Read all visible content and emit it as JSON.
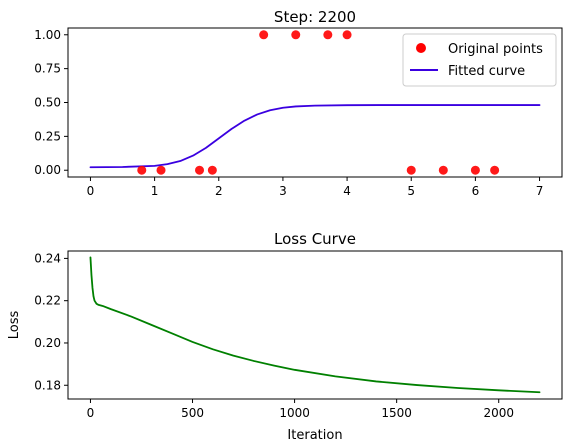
{
  "chart_data": [
    {
      "type": "scatter",
      "title": "Step: 2200",
      "xlabel": "",
      "ylabel": "",
      "xlim": [
        -0.35,
        7.35
      ],
      "ylim": [
        -0.05,
        1.05
      ],
      "xticks": [
        0,
        1,
        2,
        3,
        4,
        5,
        6,
        7
      ],
      "xtick_labels": [
        "0",
        "1",
        "2",
        "3",
        "4",
        "5",
        "6",
        "7"
      ],
      "yticks": [
        0.0,
        0.25,
        0.5,
        0.75,
        1.0
      ],
      "ytick_labels": [
        "0.00",
        "0.25",
        "0.50",
        "0.75",
        "1.00"
      ],
      "legend_position": "top-right",
      "series": [
        {
          "name": "Original points",
          "kind": "scatter",
          "color": "#ff0000",
          "x": [
            0.8,
            1.1,
            1.7,
            1.9,
            2.7,
            3.2,
            3.7,
            4.0,
            5.0,
            5.5,
            6.0,
            6.3
          ],
          "y": [
            0,
            0,
            0,
            0,
            1,
            1,
            1,
            1,
            0,
            0,
            0,
            0
          ]
        },
        {
          "name": "Fitted curve",
          "kind": "line",
          "color": "#3a00e0",
          "x": [
            0,
            0.5,
            1.0,
            1.2,
            1.4,
            1.6,
            1.8,
            2.0,
            2.2,
            2.4,
            2.6,
            2.8,
            3.0,
            3.2,
            3.5,
            4.0,
            4.5,
            5.0,
            6.0,
            7.0
          ],
          "y": [
            0.022,
            0.024,
            0.032,
            0.045,
            0.068,
            0.108,
            0.165,
            0.235,
            0.305,
            0.366,
            0.412,
            0.443,
            0.461,
            0.471,
            0.477,
            0.48,
            0.481,
            0.481,
            0.481,
            0.481
          ]
        }
      ]
    },
    {
      "type": "line",
      "title": "Loss Curve",
      "xlabel": "Iteration",
      "ylabel": "Loss",
      "xlim": [
        -110,
        2310
      ],
      "ylim": [
        0.1735,
        0.2435
      ],
      "xticks": [
        0,
        500,
        1000,
        1500,
        2000
      ],
      "xtick_labels": [
        "0",
        "500",
        "1000",
        "1500",
        "2000"
      ],
      "yticks": [
        0.18,
        0.2,
        0.22,
        0.24
      ],
      "ytick_labels": [
        "0.18",
        "0.20",
        "0.22",
        "0.24"
      ],
      "series": [
        {
          "name": "",
          "color": "#008000",
          "x": [
            0,
            5,
            10,
            15,
            20,
            30,
            40,
            60,
            100,
            200,
            300,
            400,
            500,
            600,
            700,
            800,
            900,
            1000,
            1200,
            1400,
            1600,
            1800,
            2000,
            2200
          ],
          "y": [
            0.2405,
            0.232,
            0.226,
            0.222,
            0.22,
            0.2185,
            0.218,
            0.2175,
            0.216,
            0.2125,
            0.2085,
            0.2045,
            0.2005,
            0.197,
            0.194,
            0.1915,
            0.1893,
            0.1873,
            0.1842,
            0.1818,
            0.1801,
            0.1787,
            0.1776,
            0.1767
          ]
        }
      ]
    }
  ]
}
